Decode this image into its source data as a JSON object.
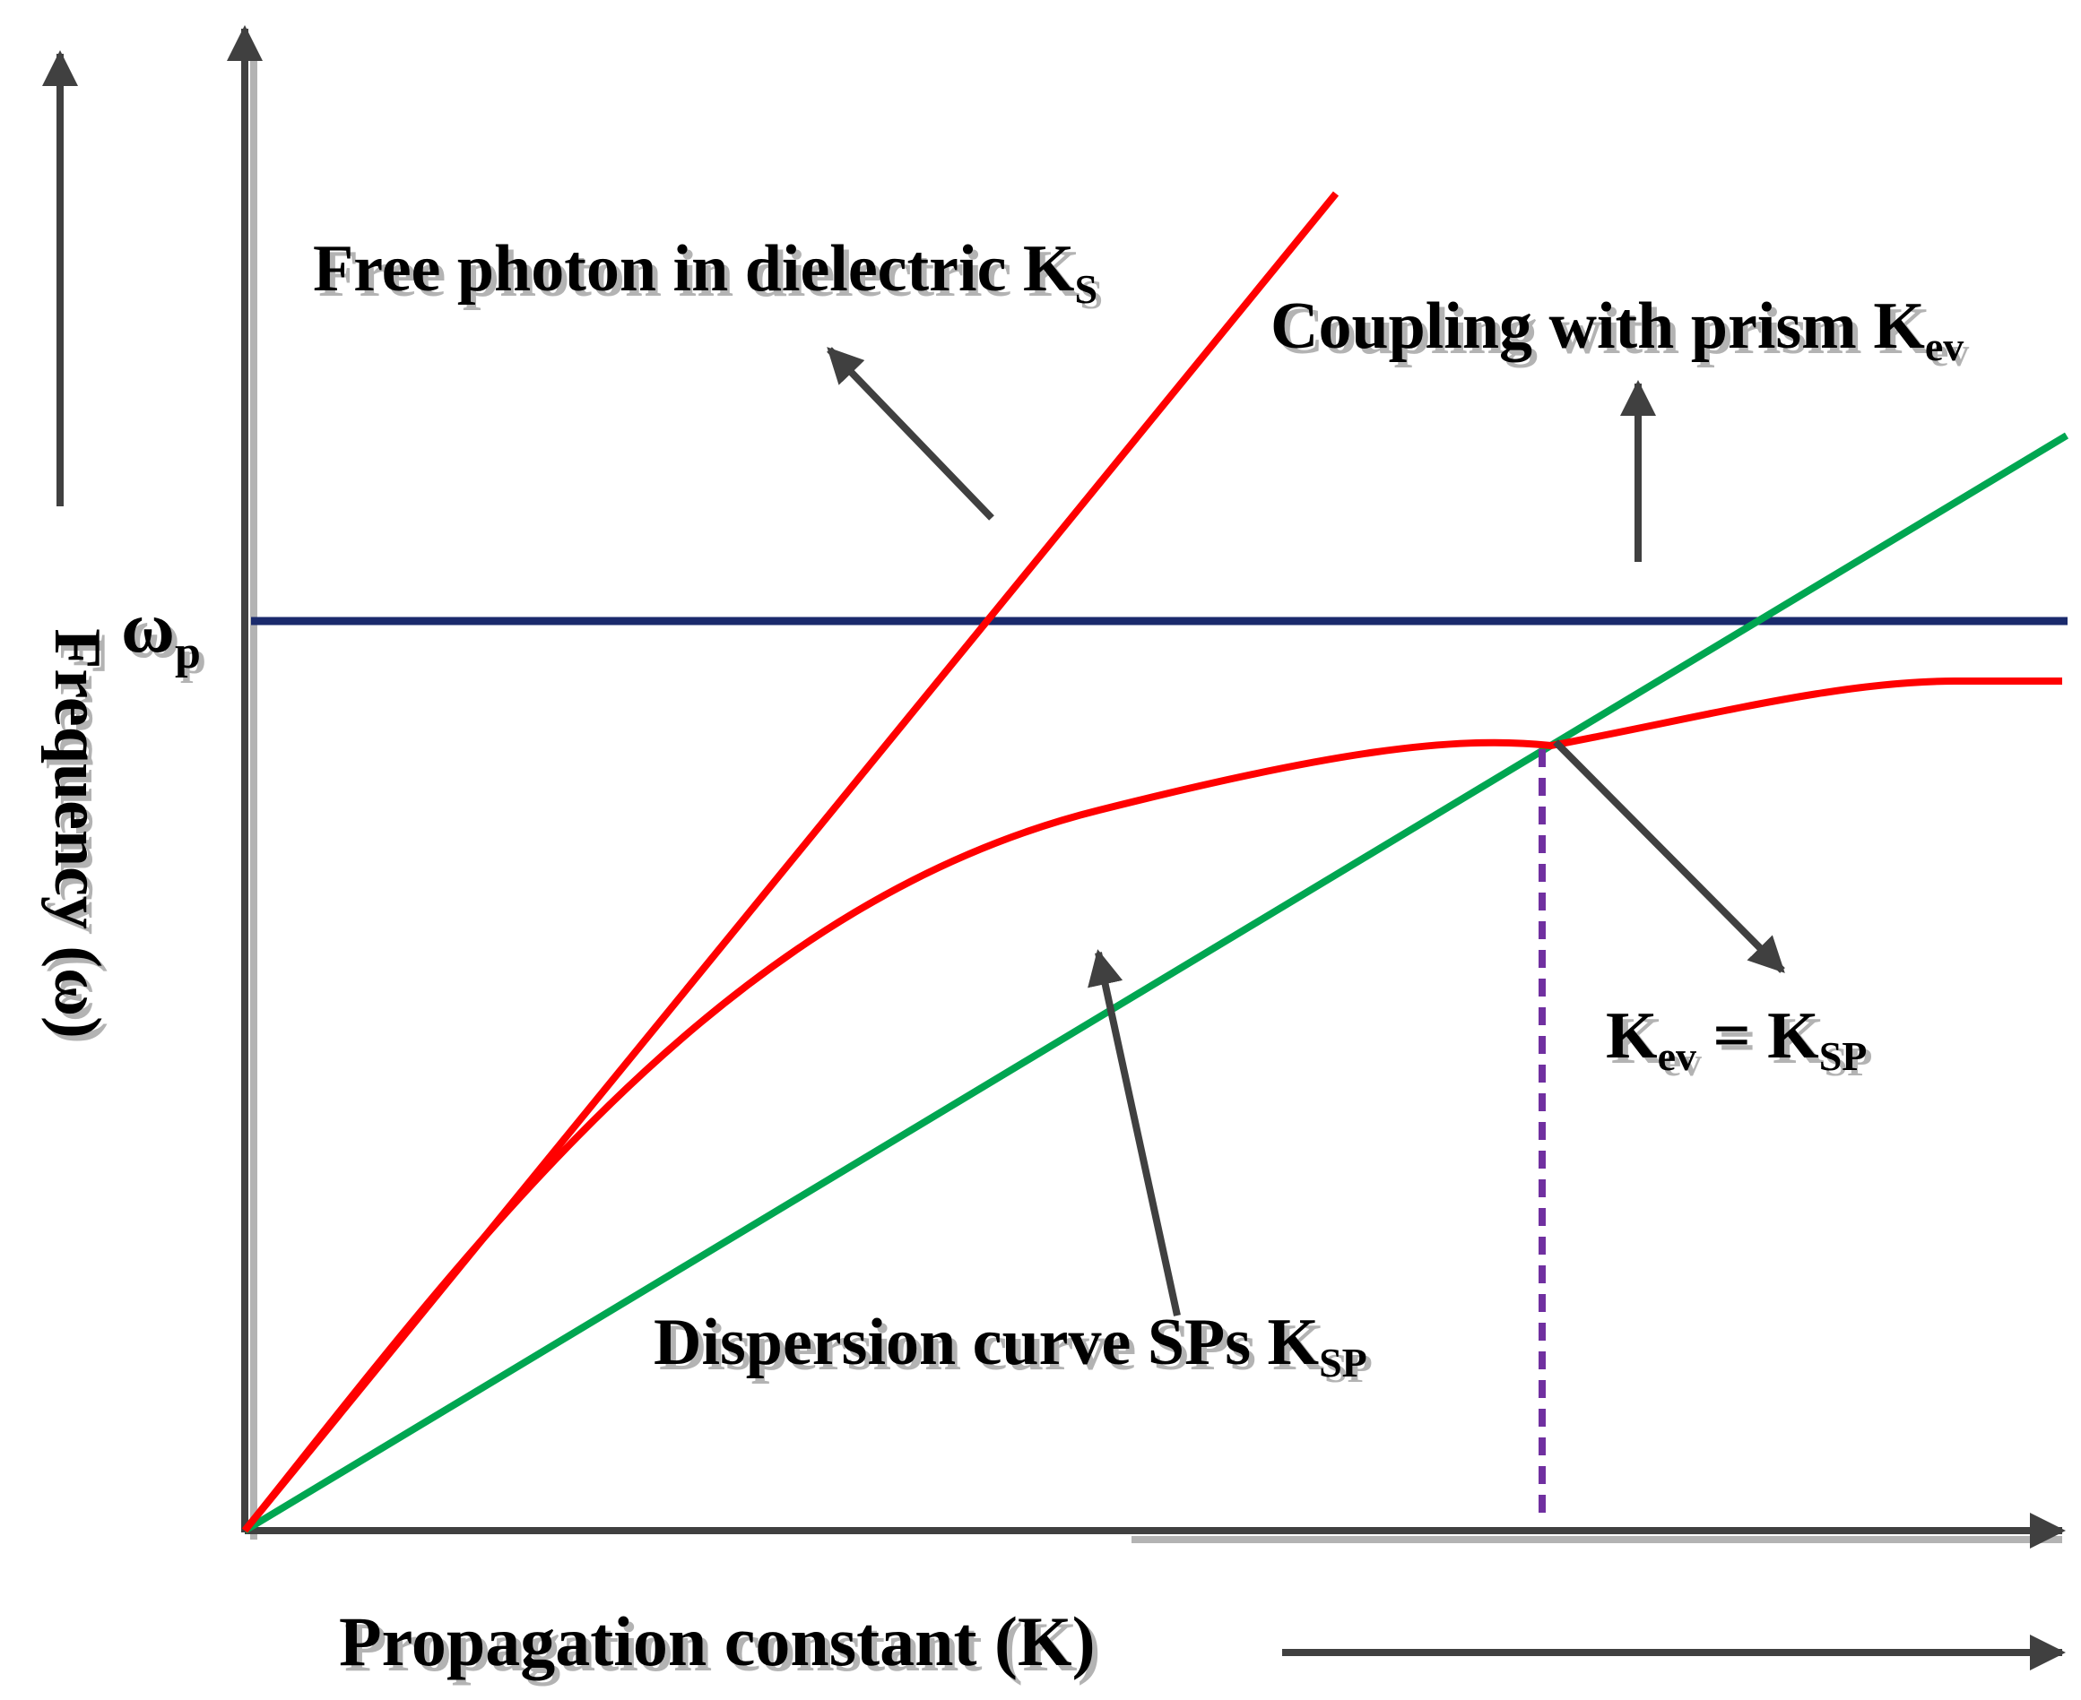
{
  "colors": {
    "axis": "#404040",
    "arrow": "#404040",
    "photon_line": "#ff0000",
    "sp_curve": "#ff0000",
    "prism_line": "#00a651",
    "plasma_line": "#1a2a6c",
    "matching_line": "#7030a0",
    "text": "#000000",
    "shadow": "#b3b3b3"
  },
  "labels": {
    "omega_p": {
      "main": "ω",
      "sub": "p"
    },
    "y_axis": "Frequency (ω)",
    "x_axis": "Propagation constant (K)",
    "free_photon": {
      "main": "Free photon in dielectric K",
      "sub": "S"
    },
    "coupling": {
      "main": "Coupling with prism K",
      "sub": "ev"
    },
    "dispersion": {
      "main": "Dispersion curve SPs K",
      "sub": "SP"
    },
    "matching": {
      "k1": "K",
      "sub1": "ev",
      "eq": " = ",
      "k2": "K",
      "sub2": "SP"
    }
  }
}
